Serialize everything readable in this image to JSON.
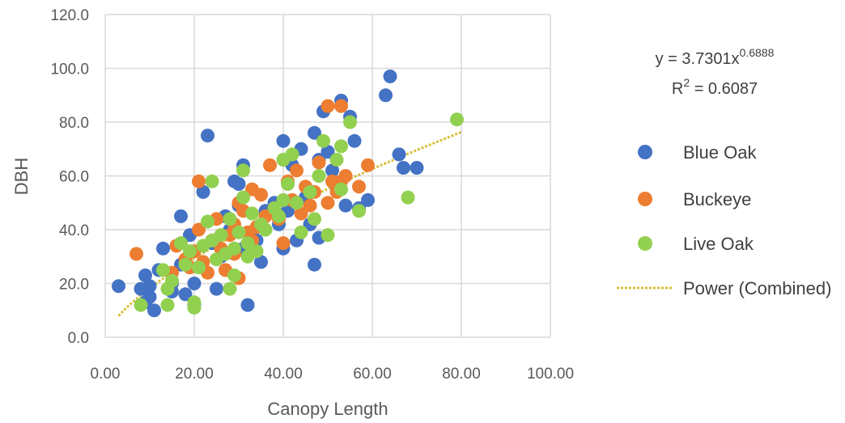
{
  "chart_data": {
    "type": "scatter",
    "title": "",
    "xlabel": "Canopy Length",
    "ylabel": "DBH",
    "xlim": [
      0,
      100
    ],
    "ylim": [
      0,
      120
    ],
    "x_ticks": [
      "0.00",
      "20.00",
      "40.00",
      "60.00",
      "80.00",
      "100.00"
    ],
    "y_ticks": [
      "0.0",
      "20.0",
      "40.0",
      "60.0",
      "80.0",
      "100.0",
      "120.0"
    ],
    "grid": true,
    "legend_position": "right",
    "equation": {
      "prefix": "y = 3.7301x",
      "exponent": "0.6888",
      "r2_label": "R",
      "r2_super": "2",
      "r2_value": " = 0.6087"
    },
    "series": [
      {
        "name": "Blue Oak",
        "color": "#4472C4",
        "points": [
          [
            3,
            19
          ],
          [
            8,
            18
          ],
          [
            9,
            23
          ],
          [
            9,
            13
          ],
          [
            10,
            19
          ],
          [
            10,
            15
          ],
          [
            11,
            10
          ],
          [
            12,
            25
          ],
          [
            13,
            33
          ],
          [
            15,
            20
          ],
          [
            15,
            17
          ],
          [
            17,
            45
          ],
          [
            17,
            27
          ],
          [
            18,
            16
          ],
          [
            19,
            38
          ],
          [
            20,
            12
          ],
          [
            20,
            20
          ],
          [
            22,
            54
          ],
          [
            23,
            75
          ],
          [
            24,
            35
          ],
          [
            25,
            18
          ],
          [
            26,
            30
          ],
          [
            27,
            45
          ],
          [
            28,
            40
          ],
          [
            29,
            58
          ],
          [
            30,
            57
          ],
          [
            30,
            49
          ],
          [
            31,
            64
          ],
          [
            31,
            33
          ],
          [
            32,
            12
          ],
          [
            33,
            39
          ],
          [
            34,
            36
          ],
          [
            35,
            28
          ],
          [
            36,
            47
          ],
          [
            38,
            50
          ],
          [
            39,
            42
          ],
          [
            40,
            73
          ],
          [
            40,
            33
          ],
          [
            41,
            47
          ],
          [
            42,
            64
          ],
          [
            43,
            36
          ],
          [
            44,
            70
          ],
          [
            45,
            52
          ],
          [
            46,
            42
          ],
          [
            47,
            76
          ],
          [
            47,
            27
          ],
          [
            48,
            66
          ],
          [
            48,
            37
          ],
          [
            49,
            84
          ],
          [
            50,
            69
          ],
          [
            51,
            62
          ],
          [
            52,
            56
          ],
          [
            53,
            88
          ],
          [
            54,
            49
          ],
          [
            55,
            82
          ],
          [
            56,
            73
          ],
          [
            57,
            48
          ],
          [
            59,
            51
          ],
          [
            63,
            90
          ],
          [
            64,
            97
          ],
          [
            66,
            68
          ],
          [
            67,
            63
          ],
          [
            70,
            63
          ]
        ]
      },
      {
        "name": "Buckeye",
        "color": "#ED7D31",
        "points": [
          [
            7,
            31
          ],
          [
            15,
            24
          ],
          [
            16,
            34
          ],
          [
            18,
            29
          ],
          [
            19,
            26
          ],
          [
            20,
            32
          ],
          [
            21,
            58
          ],
          [
            21,
            40
          ],
          [
            22,
            28
          ],
          [
            23,
            24
          ],
          [
            24,
            36
          ],
          [
            25,
            44
          ],
          [
            26,
            33
          ],
          [
            27,
            25
          ],
          [
            28,
            38
          ],
          [
            29,
            31
          ],
          [
            29,
            42
          ],
          [
            30,
            22
          ],
          [
            30,
            50
          ],
          [
            31,
            47
          ],
          [
            32,
            39
          ],
          [
            33,
            55
          ],
          [
            33,
            36
          ],
          [
            34,
            41
          ],
          [
            35,
            53
          ],
          [
            36,
            45
          ],
          [
            37,
            64
          ],
          [
            38,
            48
          ],
          [
            39,
            44
          ],
          [
            40,
            35
          ],
          [
            41,
            58
          ],
          [
            42,
            51
          ],
          [
            43,
            62
          ],
          [
            44,
            46
          ],
          [
            45,
            56
          ],
          [
            46,
            49
          ],
          [
            47,
            54
          ],
          [
            48,
            65
          ],
          [
            50,
            86
          ],
          [
            50,
            50
          ],
          [
            51,
            58
          ],
          [
            52,
            54
          ],
          [
            53,
            58
          ],
          [
            53,
            86
          ],
          [
            54,
            60
          ],
          [
            57,
            56
          ],
          [
            59,
            64
          ]
        ]
      },
      {
        "name": "Live Oak",
        "color": "#92D050",
        "points": [
          [
            8,
            12
          ],
          [
            13,
            25
          ],
          [
            14,
            12
          ],
          [
            14,
            18
          ],
          [
            15,
            21
          ],
          [
            17,
            35
          ],
          [
            18,
            27
          ],
          [
            19,
            32
          ],
          [
            20,
            13
          ],
          [
            20,
            11
          ],
          [
            21,
            26
          ],
          [
            22,
            34
          ],
          [
            23,
            43
          ],
          [
            24,
            58
          ],
          [
            24,
            36
          ],
          [
            25,
            29
          ],
          [
            26,
            38
          ],
          [
            27,
            31
          ],
          [
            28,
            18
          ],
          [
            28,
            44
          ],
          [
            29,
            33
          ],
          [
            29,
            23
          ],
          [
            30,
            39
          ],
          [
            31,
            62
          ],
          [
            31,
            52
          ],
          [
            32,
            35
          ],
          [
            32,
            30
          ],
          [
            33,
            46
          ],
          [
            34,
            32
          ],
          [
            35,
            42
          ],
          [
            36,
            40
          ],
          [
            38,
            48
          ],
          [
            39,
            45
          ],
          [
            40,
            66
          ],
          [
            40,
            51
          ],
          [
            41,
            57
          ],
          [
            42,
            68
          ],
          [
            43,
            50
          ],
          [
            44,
            39
          ],
          [
            46,
            54
          ],
          [
            47,
            44
          ],
          [
            48,
            60
          ],
          [
            49,
            73
          ],
          [
            50,
            38
          ],
          [
            52,
            66
          ],
          [
            53,
            71
          ],
          [
            53,
            55
          ],
          [
            55,
            80
          ],
          [
            57,
            47
          ],
          [
            68,
            52
          ],
          [
            79,
            81
          ]
        ]
      }
    ],
    "trendline": {
      "name": "Power (Combined)",
      "type": "power",
      "coefficient": 3.7301,
      "exponent": 0.6888,
      "x_range": [
        3,
        80
      ],
      "color": "#D9BF3D"
    }
  }
}
